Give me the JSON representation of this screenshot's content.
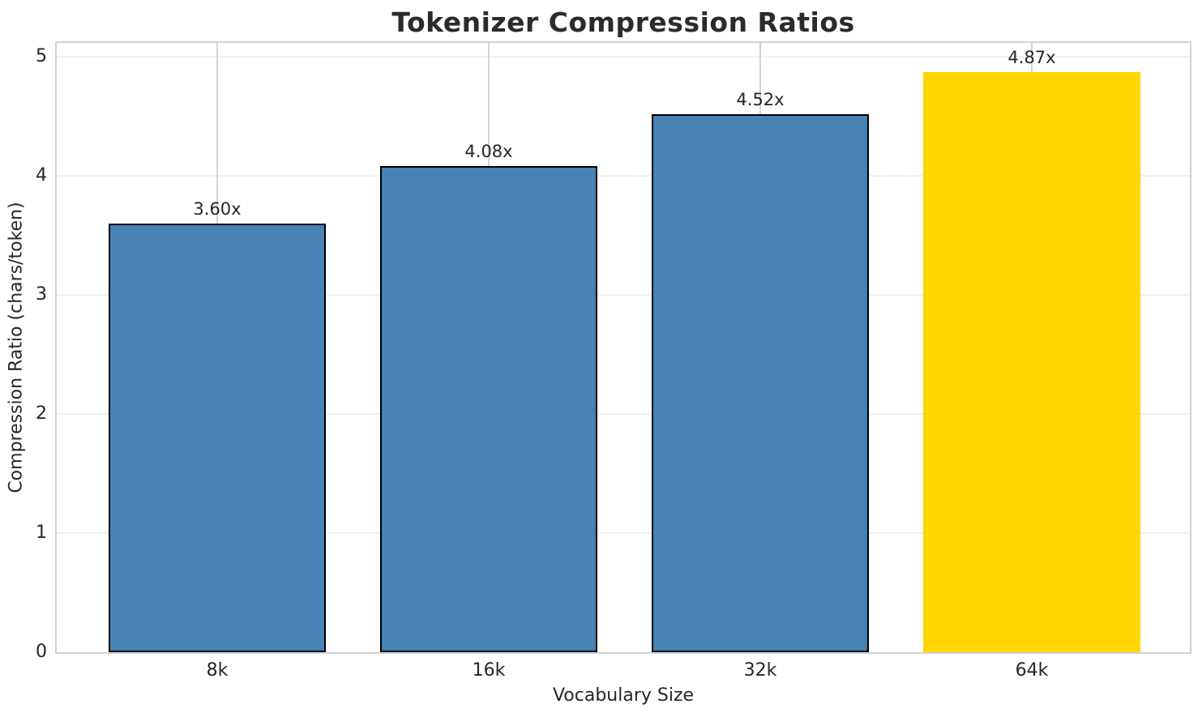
{
  "title": "Tokenizer Compression Ratios",
  "chart_data": {
    "type": "bar",
    "title": "Tokenizer Compression Ratios",
    "xlabel": "Vocabulary Size",
    "ylabel": "Compression Ratio (chars/token)",
    "categories": [
      "8k",
      "16k",
      "32k",
      "64k"
    ],
    "values": [
      3.6,
      4.08,
      4.52,
      4.87
    ],
    "bar_labels": [
      "3.60x",
      "4.08x",
      "4.52x",
      "4.87x"
    ],
    "bar_colors": [
      "#4682B4",
      "#4682B4",
      "#4682B4",
      "#FFD700"
    ],
    "bar_edge_colors": [
      "#000000",
      "#000000",
      "#000000",
      "none"
    ],
    "series_color": "#4682B4",
    "highlight_color": "#FFD700",
    "yticks": [
      0,
      1,
      2,
      3,
      4,
      5
    ],
    "ylim": [
      0,
      5.11
    ],
    "grid": true,
    "legend_position": "none",
    "background_color": "#ffffff",
    "spine_color": "#d0d0d0",
    "gridline_h_color": "#f0f0f0",
    "gridline_v_color": "#d4d4d4",
    "text_color": "#262626"
  }
}
